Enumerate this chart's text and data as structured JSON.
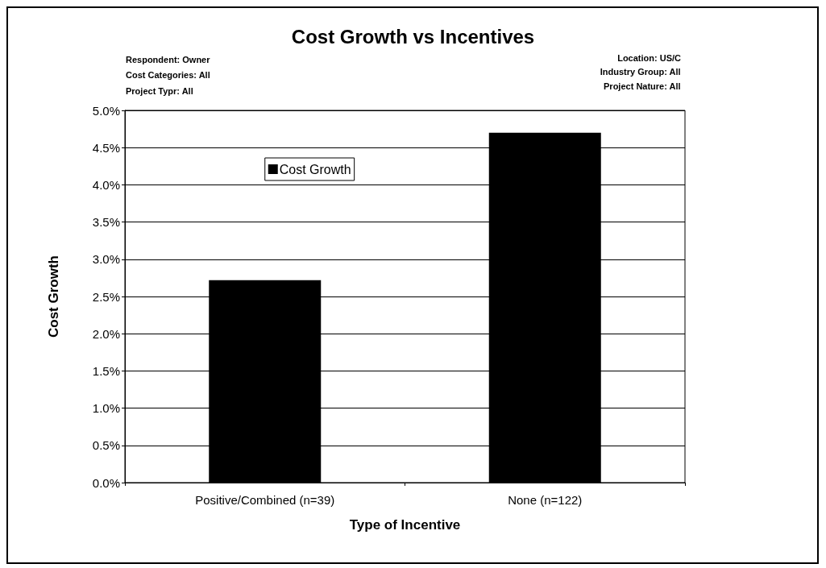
{
  "chart_data": {
    "type": "bar",
    "title": "Cost Growth vs Incentives",
    "annotations": [
      "Respondent: Owner",
      "Cost Categories: All",
      "Project Typr: All",
      "Location: US/C",
      "Industry Group: All",
      "Project Nature: All"
    ],
    "xlabel": "Type of Incentive",
    "ylabel": "Cost Growth",
    "categories": [
      "Positive/Combined (n=39)",
      "None (n=122)"
    ],
    "series": [
      {
        "name": "Cost Growth",
        "color": "#000000",
        "values": [
          2.72,
          4.7
        ]
      }
    ],
    "ylim": [
      0,
      5
    ],
    "yticks": [
      {
        "value": 0,
        "label": "0.0%"
      },
      {
        "value": 0.5,
        "label": "0.5%"
      },
      {
        "value": 1,
        "label": "1.0%"
      },
      {
        "value": 1.5,
        "label": "1.5%"
      },
      {
        "value": 2,
        "label": "2.0%"
      },
      {
        "value": 2.5,
        "label": "2.5%"
      },
      {
        "value": 3,
        "label": "3.0%"
      },
      {
        "value": 3.5,
        "label": "3.5%"
      },
      {
        "value": 4,
        "label": "4.0%"
      },
      {
        "value": 4.5,
        "label": "4.5%"
      },
      {
        "value": 5,
        "label": "5.0%"
      }
    ],
    "grid": "y",
    "legend": "top left"
  }
}
